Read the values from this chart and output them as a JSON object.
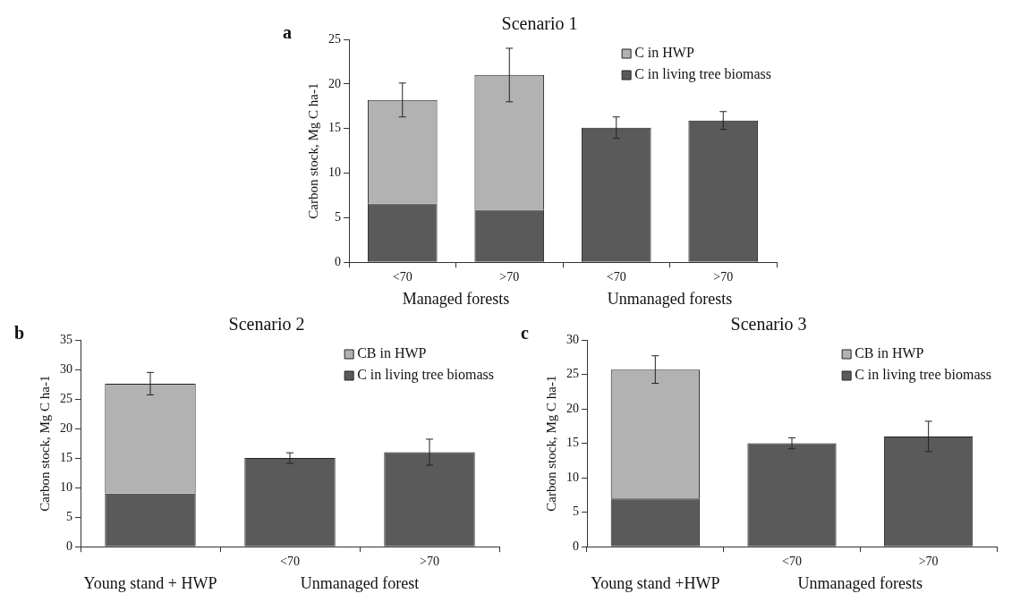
{
  "chart_data": [
    {
      "type": "bar",
      "title": "Scenario 1",
      "ylabel": "Carbon stock, Mg C ha-1",
      "categories": [
        "<70",
        ">70",
        "<70",
        ">70"
      ],
      "stacked": true,
      "legend": "top right",
      "series": [
        {
          "name": "C in living tree biomass",
          "color": "#5a5a5a",
          "values": [
            6.6,
            5.9,
            15.1,
            15.9
          ],
          "errors": [
            null,
            null,
            1.2,
            1.0
          ]
        },
        {
          "name": "C in HWP",
          "color": "#b2b2b2",
          "values": [
            11.6,
            15.1,
            null,
            null
          ],
          "errors": [
            1.9,
            3.0,
            null,
            null
          ]
        }
      ],
      "ylim": [
        0,
        25
      ],
      "yticks": [
        0,
        5,
        10,
        15,
        20,
        25
      ],
      "annotations": [
        "a",
        "Managed forests",
        "Unmanaged forests"
      ]
    },
    {
      "type": "bar",
      "title": "Scenario 2",
      "ylabel": "Carbon stock, Mg C ha-1",
      "categories": [
        null,
        "<70",
        ">70"
      ],
      "stacked": true,
      "legend": "top right",
      "series": [
        {
          "name": "C in living tree biomass",
          "color": "#5a5a5a",
          "values": [
            9.0,
            15.0,
            16.0
          ],
          "errors": [
            null,
            0.9,
            2.2
          ]
        },
        {
          "name": "CB in HWP",
          "color": "#b2b2b2",
          "values": [
            18.6,
            null,
            null
          ],
          "errors": [
            1.9,
            null,
            null
          ]
        }
      ],
      "ylim": [
        0,
        35
      ],
      "yticks": [
        0,
        5,
        10,
        15,
        20,
        25,
        30,
        35
      ],
      "annotations": [
        "b",
        "Young stand + HWP",
        "Unmanaged forest"
      ]
    },
    {
      "type": "bar",
      "title": "Scenario 3",
      "ylabel": "Carbon stock, Mg C ha-1",
      "categories": [
        null,
        "<70",
        ">70"
      ],
      "stacked": true,
      "legend": "top right",
      "series": [
        {
          "name": "C in living tree biomass",
          "color": "#5a5a5a",
          "values": [
            7.0,
            15.0,
            16.0
          ],
          "errors": [
            null,
            0.8,
            2.2
          ]
        },
        {
          "name": "CB in HWP",
          "color": "#b2b2b2",
          "values": [
            18.7,
            null,
            null
          ],
          "errors": [
            2.0,
            null,
            null
          ]
        }
      ],
      "ylim": [
        0,
        30
      ],
      "yticks": [
        0,
        5,
        10,
        15,
        20,
        25,
        30
      ],
      "annotations": [
        "c",
        "Young stand +HWP",
        "Unmanaged forests"
      ]
    }
  ]
}
